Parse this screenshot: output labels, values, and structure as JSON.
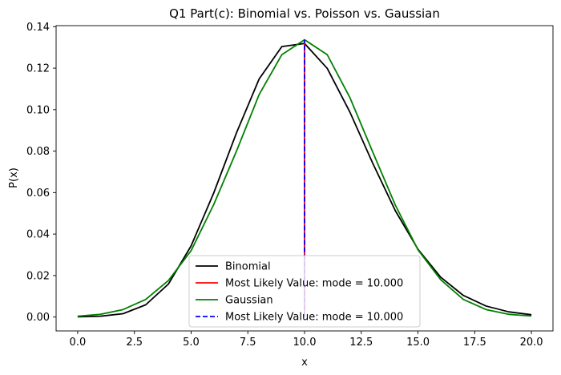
{
  "chart_data": {
    "type": "line",
    "title": "Q1 Part(c): Binomial vs. Poisson vs. Gaussian",
    "xlabel": "x",
    "ylabel": "P(x)",
    "xlim": [
      -0.95,
      20.95
    ],
    "ylim": [
      -0.0067,
      0.1405
    ],
    "x_ticks": [
      0,
      2.5,
      5,
      7.5,
      10,
      12.5,
      15,
      17.5,
      20
    ],
    "x_tick_labels": [
      "0.0",
      "2.5",
      "5.0",
      "7.5",
      "10.0",
      "12.5",
      "15.0",
      "17.5",
      "20.0"
    ],
    "y_ticks": [
      0,
      0.02,
      0.04,
      0.06,
      0.08,
      0.1,
      0.12,
      0.14
    ],
    "y_tick_labels": [
      "0.00",
      "0.02",
      "0.04",
      "0.06",
      "0.08",
      "0.10",
      "0.12",
      "0.14"
    ],
    "grid": false,
    "legend_position": "bottom-center",
    "x": [
      0,
      1,
      2,
      3,
      4,
      5,
      6,
      7,
      8,
      9,
      10,
      11,
      12,
      13,
      14,
      15,
      16,
      17,
      18,
      19,
      20
    ],
    "series": [
      {
        "name": "Binomial",
        "kind": "line",
        "color": "#000000",
        "values": [
          0.0001,
          0.0004,
          0.0016,
          0.0059,
          0.0159,
          0.0343,
          0.0599,
          0.0888,
          0.1148,
          0.1304,
          0.1319,
          0.1199,
          0.0988,
          0.0743,
          0.0513,
          0.0327,
          0.0192,
          0.0104,
          0.0053,
          0.0025,
          0.0011
        ]
      },
      {
        "name": "Most Likely Value: mode = 10.000",
        "kind": "vline",
        "color": "#ff0000",
        "x": 10,
        "y_range": [
          0,
          0.1319
        ]
      },
      {
        "name": "Gaussian",
        "kind": "line",
        "color": "#008000",
        "values": [
          0.0004,
          0.0013,
          0.0036,
          0.0085,
          0.0176,
          0.032,
          0.0543,
          0.08,
          0.1073,
          0.1265,
          0.1337,
          0.1265,
          0.1058,
          0.0797,
          0.054,
          0.0324,
          0.018,
          0.0085,
          0.0036,
          0.0013,
          0.0005
        ]
      },
      {
        "name": "Most Likely Value: mode = 10.000",
        "kind": "vline-dashed",
        "color": "#0000ff",
        "x": 10,
        "y_range": [
          0,
          0.1337
        ]
      }
    ]
  }
}
